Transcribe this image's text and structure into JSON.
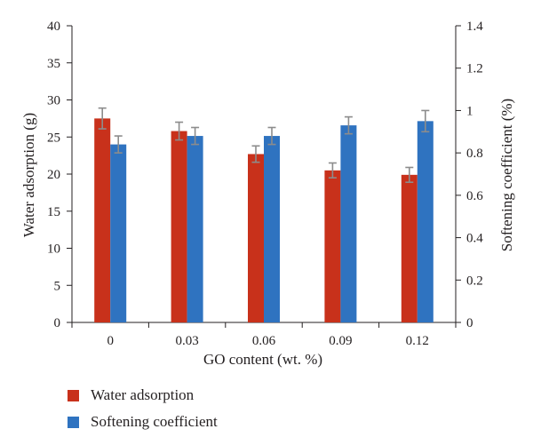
{
  "chart_data": {
    "type": "bar",
    "xlabel": "GO content (wt. %)",
    "ylabel_left": "Water adsorption (g)",
    "ylabel_right": "Softening coefficient (%)",
    "categories": [
      "0",
      "0.03",
      "0.06",
      "0.09",
      "0.12"
    ],
    "ylim_left": [
      0,
      40
    ],
    "ylim_right": [
      0,
      1.4
    ],
    "yticks_left": [
      "0",
      "5",
      "10",
      "15",
      "20",
      "25",
      "30",
      "35",
      "40"
    ],
    "yticks_right": [
      "0",
      "0.2",
      "0.4",
      "0.6",
      "0.8",
      "1",
      "1.2",
      "1.4"
    ],
    "grid": false,
    "legend_position": "bottom-left",
    "series": [
      {
        "name": "Water adsorption",
        "axis": "left",
        "color": "#c8311b",
        "values": [
          27.5,
          25.8,
          22.7,
          20.5,
          19.9
        ],
        "errors": [
          1.4,
          1.2,
          1.1,
          1.0,
          1.0
        ]
      },
      {
        "name": "Softening coefficient",
        "axis": "right",
        "color": "#2f73c0",
        "values": [
          0.84,
          0.88,
          0.88,
          0.93,
          0.95
        ],
        "errors": [
          0.04,
          0.04,
          0.04,
          0.04,
          0.05
        ]
      }
    ]
  }
}
